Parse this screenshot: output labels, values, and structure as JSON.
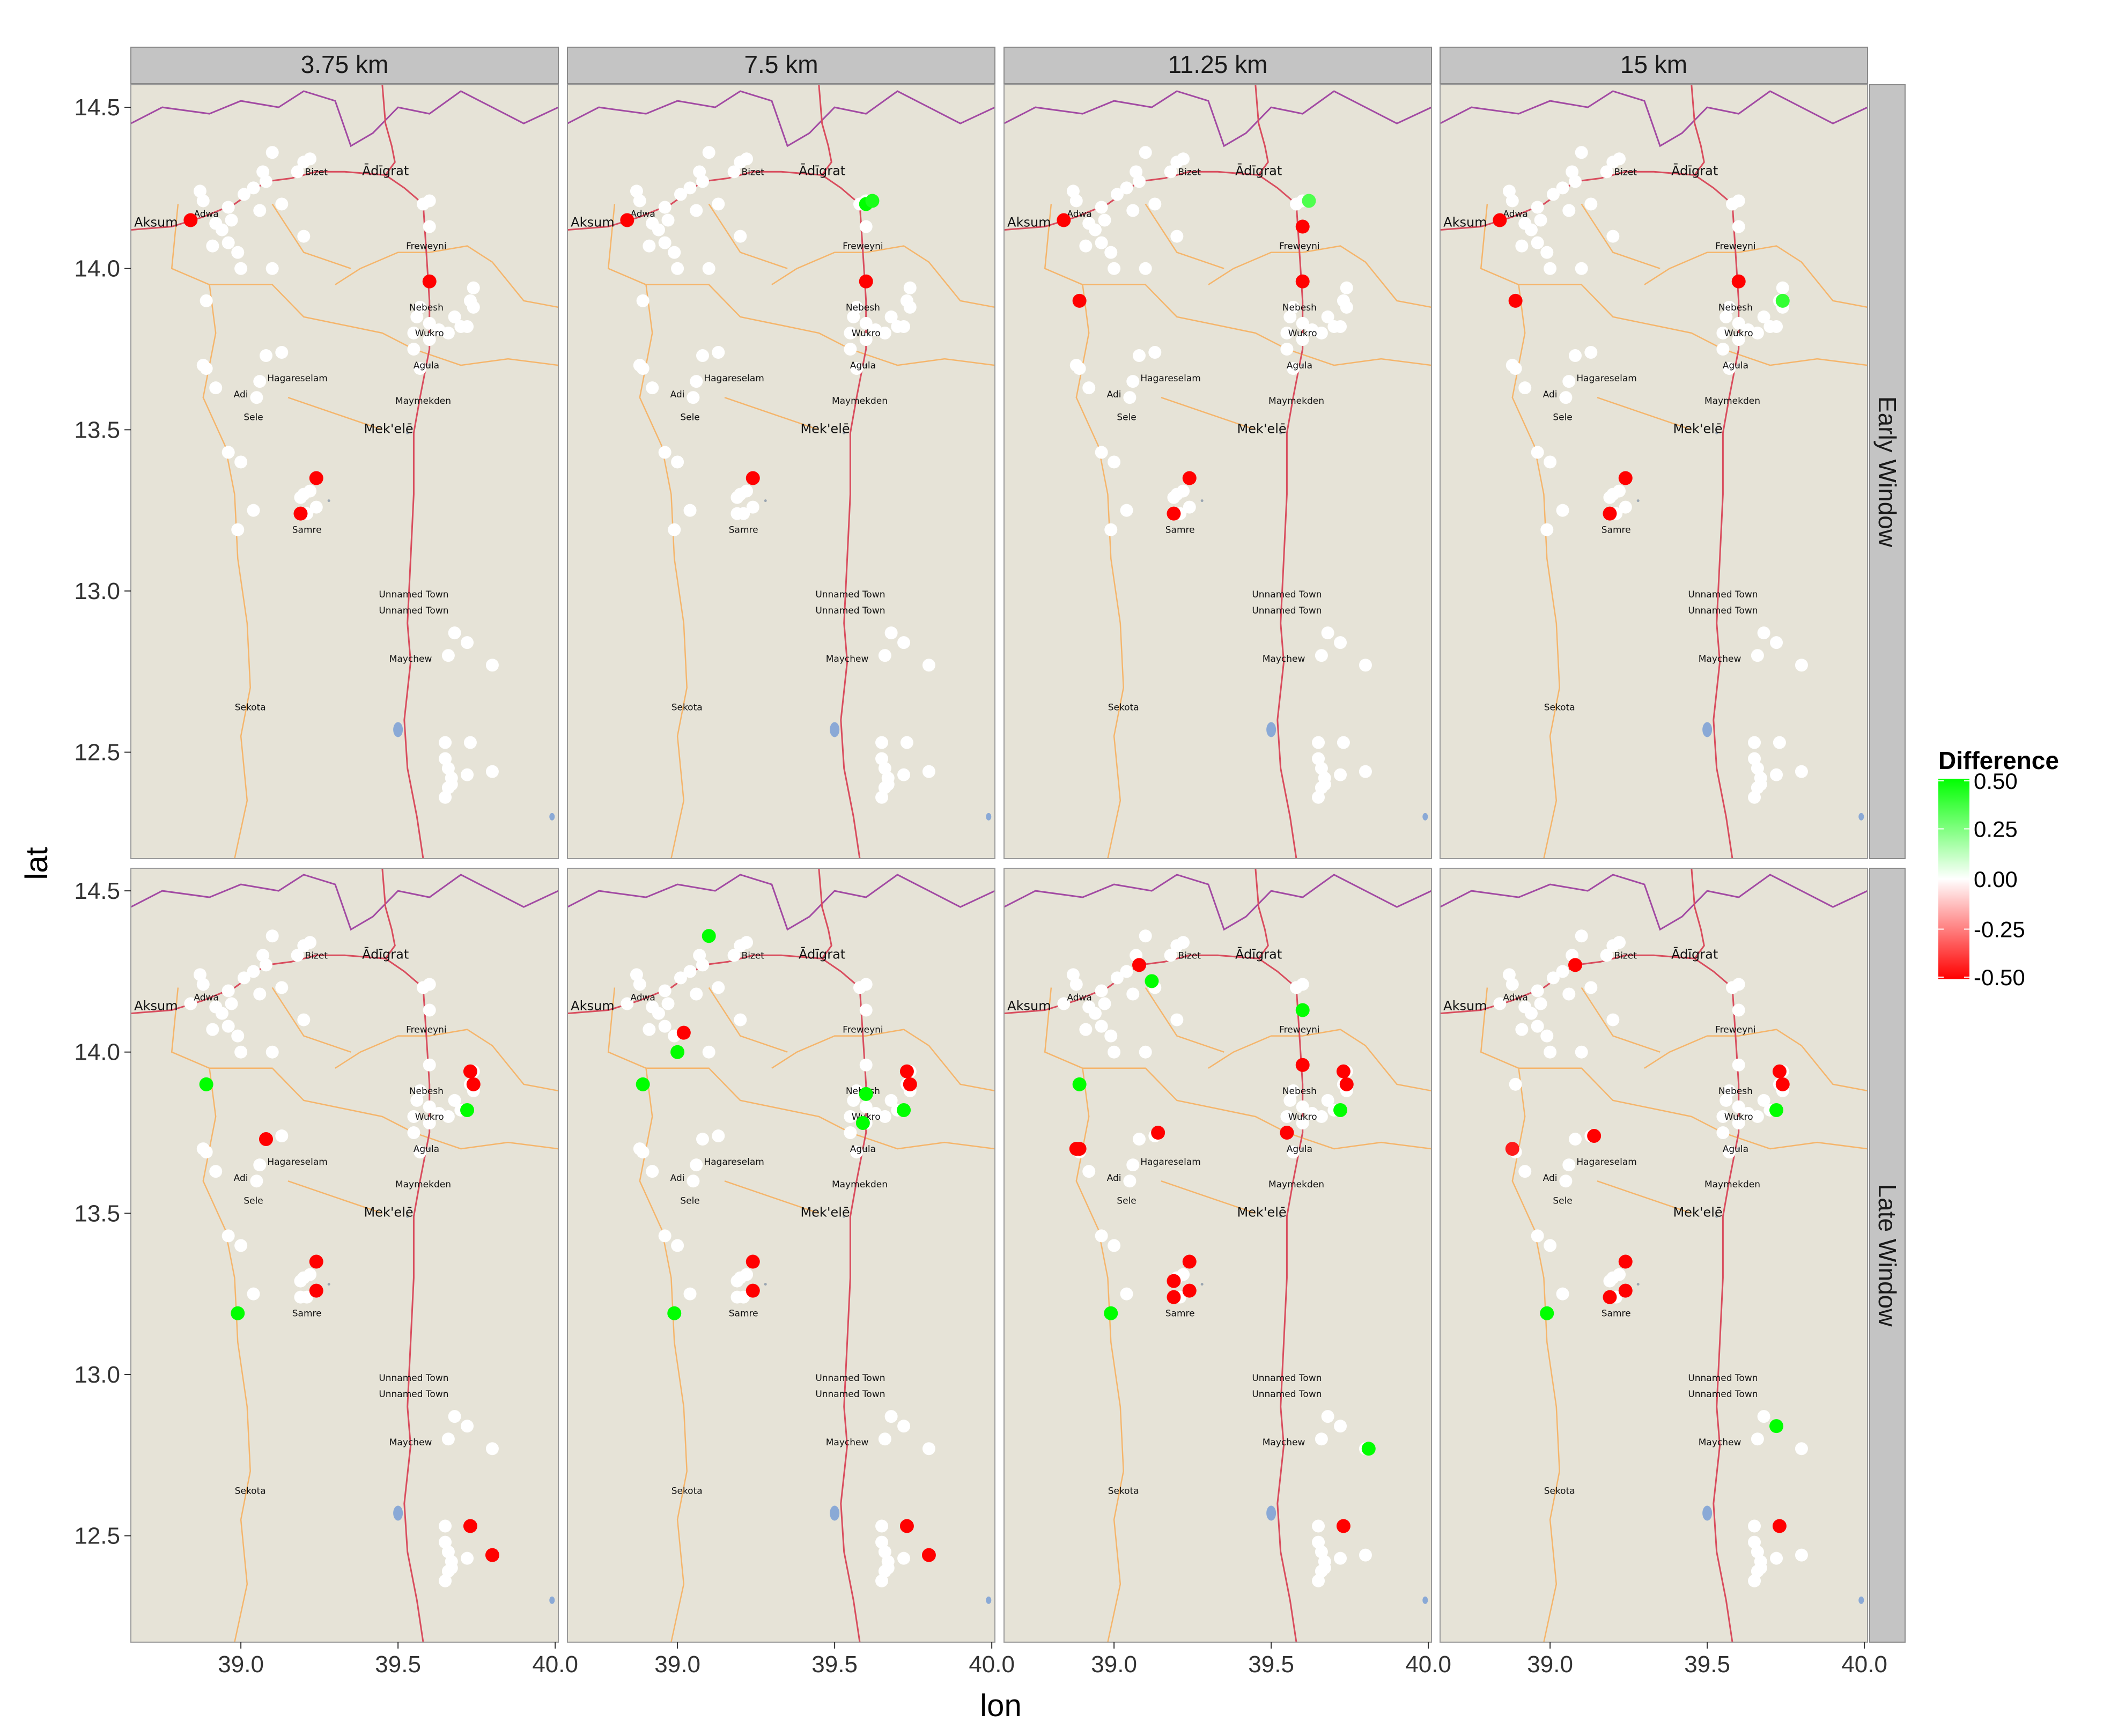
{
  "chart_data": {
    "type": "scatter",
    "subtype": "faceted map",
    "xlabel": "lon",
    "ylabel": "lat",
    "xlim": [
      38.65,
      40.01
    ],
    "ylim": [
      12.17,
      14.57
    ],
    "x_ticks": [
      "39.0",
      "39.5",
      "40.0"
    ],
    "y_ticks": [
      "12.5",
      "13.0",
      "13.5",
      "14.0",
      "14.5"
    ],
    "column_facets": [
      "3.75 km",
      "7.5 km",
      "11.25 km",
      "15 km"
    ],
    "row_facets": [
      "Early Window",
      "Late Window"
    ],
    "legend": {
      "title": "Difference",
      "labels": [
        "0.50",
        "0.25",
        "0.00",
        "-0.25",
        "-0.50"
      ],
      "values": [
        0.5,
        0.25,
        0,
        -0.25,
        -0.5
      ],
      "low_color": "#ff0000",
      "mid_color": "#ffffff",
      "high_color": "#00ff00"
    },
    "map_towns": [
      {
        "name": "Aksum",
        "lon": 38.73,
        "lat": 14.13,
        "size": "big"
      },
      {
        "name": "Adwa",
        "lon": 38.89,
        "lat": 14.16,
        "size": "small"
      },
      {
        "name": "Bizet",
        "lon": 39.24,
        "lat": 14.29,
        "size": "small"
      },
      {
        "name": "Ādīgrat",
        "lon": 39.46,
        "lat": 14.29,
        "size": "big"
      },
      {
        "name": "Freweyni",
        "lon": 39.59,
        "lat": 14.06,
        "size": "small"
      },
      {
        "name": "Nebesh",
        "lon": 39.59,
        "lat": 13.87,
        "size": "small"
      },
      {
        "name": "Wukro",
        "lon": 39.6,
        "lat": 13.79,
        "size": "small"
      },
      {
        "name": "Agula",
        "lon": 39.59,
        "lat": 13.69,
        "size": "small"
      },
      {
        "name": "Hagareselam",
        "lon": 39.18,
        "lat": 13.65,
        "size": "small"
      },
      {
        "name": "Adi",
        "lon": 39.0,
        "lat": 13.6,
        "size": "small"
      },
      {
        "name": "Sele",
        "lon": 39.04,
        "lat": 13.53,
        "size": "small"
      },
      {
        "name": "Maymekden",
        "lon": 39.58,
        "lat": 13.58,
        "size": "small"
      },
      {
        "name": "Mek'elē",
        "lon": 39.47,
        "lat": 13.49,
        "size": "big"
      },
      {
        "name": "Samre",
        "lon": 39.21,
        "lat": 13.18,
        "size": "small"
      },
      {
        "name": "Unnamed Town",
        "lon": 39.55,
        "lat": 12.98,
        "size": "small"
      },
      {
        "name": "Unnamed Town",
        "lon": 39.55,
        "lat": 12.93,
        "size": "small"
      },
      {
        "name": "Maychew",
        "lon": 39.54,
        "lat": 12.78,
        "size": "small"
      },
      {
        "name": "Sekota",
        "lon": 39.03,
        "lat": 12.63,
        "size": "small"
      }
    ],
    "site_locations": [
      [
        38.87,
        14.24
      ],
      [
        38.88,
        14.21
      ],
      [
        38.92,
        14.14
      ],
      [
        38.91,
        14.07
      ],
      [
        38.94,
        14.12
      ],
      [
        38.97,
        14.15
      ],
      [
        39.01,
        14.23
      ],
      [
        38.96,
        14.19
      ],
      [
        38.96,
        14.08
      ],
      [
        38.99,
        14.05
      ],
      [
        39.0,
        14.0
      ],
      [
        39.04,
        14.25
      ],
      [
        39.07,
        14.3
      ],
      [
        39.06,
        14.18
      ],
      [
        39.08,
        14.27
      ],
      [
        39.1,
        14.36
      ],
      [
        39.13,
        14.2
      ],
      [
        39.18,
        14.3
      ],
      [
        39.2,
        14.33
      ],
      [
        39.22,
        14.34
      ],
      [
        39.1,
        14.0
      ],
      [
        39.2,
        14.1
      ],
      [
        38.89,
        13.9
      ],
      [
        38.88,
        13.7
      ],
      [
        38.89,
        13.69
      ],
      [
        38.92,
        13.63
      ],
      [
        38.96,
        13.43
      ],
      [
        39.0,
        13.4
      ],
      [
        38.99,
        13.19
      ],
      [
        39.04,
        13.25
      ],
      [
        39.05,
        13.6
      ],
      [
        39.06,
        13.65
      ],
      [
        39.08,
        13.73
      ],
      [
        39.13,
        13.74
      ],
      [
        39.19,
        13.29
      ],
      [
        39.2,
        13.3
      ],
      [
        39.22,
        13.31
      ],
      [
        39.21,
        13.24
      ],
      [
        39.24,
        13.26
      ],
      [
        39.58,
        14.2
      ],
      [
        39.6,
        14.21
      ],
      [
        39.6,
        14.13
      ],
      [
        39.6,
        13.96
      ],
      [
        39.57,
        13.88
      ],
      [
        39.56,
        13.85
      ],
      [
        39.6,
        13.83
      ],
      [
        39.55,
        13.8
      ],
      [
        39.6,
        13.78
      ],
      [
        39.63,
        13.81
      ],
      [
        39.66,
        13.8
      ],
      [
        39.68,
        13.85
      ],
      [
        39.72,
        13.82
      ],
      [
        39.74,
        13.94
      ],
      [
        39.73,
        13.9
      ],
      [
        39.74,
        13.88
      ],
      [
        39.7,
        13.82
      ],
      [
        39.55,
        13.75
      ],
      [
        39.57,
        13.69
      ],
      [
        39.68,
        12.87
      ],
      [
        39.72,
        12.84
      ],
      [
        39.66,
        12.8
      ],
      [
        39.8,
        12.77
      ],
      [
        39.65,
        12.53
      ],
      [
        39.73,
        12.53
      ],
      [
        39.65,
        12.48
      ],
      [
        39.66,
        12.45
      ],
      [
        39.67,
        12.42
      ],
      [
        39.66,
        12.39
      ],
      [
        39.65,
        12.36
      ],
      [
        39.72,
        12.43
      ],
      [
        39.8,
        12.44
      ],
      [
        39.67,
        12.4
      ],
      [
        39.24,
        13.35
      ],
      [
        39.19,
        13.24
      ],
      [
        38.84,
        14.15
      ]
    ],
    "panels": [
      {
        "column": "3.75 km",
        "row": "Early Window",
        "points": [
          {
            "lon": 38.84,
            "lat": 14.15,
            "value": -0.5
          },
          {
            "lon": 39.6,
            "lat": 13.96,
            "value": -0.5
          },
          {
            "lon": 39.24,
            "lat": 13.35,
            "value": -0.5
          },
          {
            "lon": 39.19,
            "lat": 13.24,
            "value": -0.5
          }
        ]
      },
      {
        "column": "7.5 km",
        "row": "Early Window",
        "points": [
          {
            "lon": 38.84,
            "lat": 14.15,
            "value": -0.5
          },
          {
            "lon": 39.6,
            "lat": 14.2,
            "value": 0.5
          },
          {
            "lon": 39.62,
            "lat": 14.21,
            "value": 0.45
          },
          {
            "lon": 39.6,
            "lat": 13.96,
            "value": -0.5
          },
          {
            "lon": 39.24,
            "lat": 13.35,
            "value": -0.5
          }
        ]
      },
      {
        "column": "11.25 km",
        "row": "Early Window",
        "points": [
          {
            "lon": 38.84,
            "lat": 14.15,
            "value": -0.5
          },
          {
            "lon": 38.89,
            "lat": 13.9,
            "value": -0.5
          },
          {
            "lon": 39.62,
            "lat": 14.21,
            "value": 0.35
          },
          {
            "lon": 39.6,
            "lat": 14.13,
            "value": -0.5
          },
          {
            "lon": 39.6,
            "lat": 13.96,
            "value": -0.5
          },
          {
            "lon": 39.24,
            "lat": 13.35,
            "value": -0.5
          },
          {
            "lon": 39.19,
            "lat": 13.24,
            "value": -0.5
          }
        ]
      },
      {
        "column": "15 km",
        "row": "Early Window",
        "points": [
          {
            "lon": 38.84,
            "lat": 14.15,
            "value": -0.5
          },
          {
            "lon": 38.89,
            "lat": 13.9,
            "value": -0.5
          },
          {
            "lon": 39.6,
            "lat": 13.96,
            "value": -0.5
          },
          {
            "lon": 39.74,
            "lat": 13.9,
            "value": 0.4
          },
          {
            "lon": 39.24,
            "lat": 13.35,
            "value": -0.5
          },
          {
            "lon": 39.19,
            "lat": 13.24,
            "value": -0.5
          }
        ]
      },
      {
        "column": "3.75 km",
        "row": "Late Window",
        "points": [
          {
            "lon": 38.89,
            "lat": 13.9,
            "value": 0.5
          },
          {
            "lon": 39.08,
            "lat": 13.73,
            "value": -0.5
          },
          {
            "lon": 39.73,
            "lat": 13.94,
            "value": -0.5
          },
          {
            "lon": 39.74,
            "lat": 13.9,
            "value": -0.5
          },
          {
            "lon": 39.72,
            "lat": 13.82,
            "value": 0.5
          },
          {
            "lon": 39.24,
            "lat": 13.35,
            "value": -0.5
          },
          {
            "lon": 39.24,
            "lat": 13.26,
            "value": -0.5
          },
          {
            "lon": 38.99,
            "lat": 13.19,
            "value": 0.5
          },
          {
            "lon": 39.73,
            "lat": 12.53,
            "value": -0.5
          },
          {
            "lon": 39.8,
            "lat": 12.44,
            "value": -0.5
          }
        ]
      },
      {
        "column": "7.5 km",
        "row": "Late Window",
        "points": [
          {
            "lon": 39.1,
            "lat": 14.36,
            "value": 0.5
          },
          {
            "lon": 39.02,
            "lat": 14.06,
            "value": -0.5
          },
          {
            "lon": 39.0,
            "lat": 14.0,
            "value": 0.5
          },
          {
            "lon": 38.89,
            "lat": 13.9,
            "value": 0.5
          },
          {
            "lon": 39.73,
            "lat": 13.94,
            "value": -0.5
          },
          {
            "lon": 39.74,
            "lat": 13.9,
            "value": -0.5
          },
          {
            "lon": 39.6,
            "lat": 13.87,
            "value": 0.5
          },
          {
            "lon": 39.72,
            "lat": 13.82,
            "value": 0.5
          },
          {
            "lon": 39.59,
            "lat": 13.78,
            "value": 0.5
          },
          {
            "lon": 39.24,
            "lat": 13.35,
            "value": -0.5
          },
          {
            "lon": 39.24,
            "lat": 13.26,
            "value": -0.5
          },
          {
            "lon": 38.99,
            "lat": 13.19,
            "value": 0.5
          },
          {
            "lon": 39.73,
            "lat": 12.53,
            "value": -0.5
          },
          {
            "lon": 39.8,
            "lat": 12.44,
            "value": -0.5
          }
        ]
      },
      {
        "column": "11.25 km",
        "row": "Late Window",
        "points": [
          {
            "lon": 39.08,
            "lat": 14.27,
            "value": -0.5
          },
          {
            "lon": 39.12,
            "lat": 14.22,
            "value": 0.5
          },
          {
            "lon": 39.6,
            "lat": 14.13,
            "value": 0.5
          },
          {
            "lon": 38.89,
            "lat": 13.9,
            "value": 0.5
          },
          {
            "lon": 39.6,
            "lat": 13.96,
            "value": -0.5
          },
          {
            "lon": 39.73,
            "lat": 13.94,
            "value": -0.5
          },
          {
            "lon": 39.74,
            "lat": 13.9,
            "value": -0.5
          },
          {
            "lon": 39.72,
            "lat": 13.82,
            "value": 0.5
          },
          {
            "lon": 39.14,
            "lat": 13.75,
            "value": -0.5
          },
          {
            "lon": 39.55,
            "lat": 13.75,
            "value": -0.5
          },
          {
            "lon": 38.88,
            "lat": 13.7,
            "value": -0.5
          },
          {
            "lon": 38.89,
            "lat": 13.7,
            "value": -0.5
          },
          {
            "lon": 39.24,
            "lat": 13.35,
            "value": -0.5
          },
          {
            "lon": 39.19,
            "lat": 13.29,
            "value": -0.5
          },
          {
            "lon": 39.24,
            "lat": 13.26,
            "value": -0.5
          },
          {
            "lon": 39.19,
            "lat": 13.24,
            "value": -0.5
          },
          {
            "lon": 38.99,
            "lat": 13.19,
            "value": 0.5
          },
          {
            "lon": 39.81,
            "lat": 12.77,
            "value": 0.5
          },
          {
            "lon": 39.73,
            "lat": 12.53,
            "value": -0.5
          }
        ]
      },
      {
        "column": "15 km",
        "row": "Late Window",
        "points": [
          {
            "lon": 39.08,
            "lat": 14.27,
            "value": -0.5
          },
          {
            "lon": 39.73,
            "lat": 13.94,
            "value": -0.5
          },
          {
            "lon": 39.74,
            "lat": 13.9,
            "value": -0.5
          },
          {
            "lon": 39.72,
            "lat": 13.82,
            "value": 0.5
          },
          {
            "lon": 39.14,
            "lat": 13.74,
            "value": -0.5
          },
          {
            "lon": 38.88,
            "lat": 13.7,
            "value": -0.45
          },
          {
            "lon": 39.24,
            "lat": 13.35,
            "value": -0.5
          },
          {
            "lon": 39.24,
            "lat": 13.26,
            "value": -0.5
          },
          {
            "lon": 39.19,
            "lat": 13.24,
            "value": -0.5
          },
          {
            "lon": 38.99,
            "lat": 13.19,
            "value": 0.5
          },
          {
            "lon": 39.72,
            "lat": 12.84,
            "value": 0.5
          },
          {
            "lon": 39.73,
            "lat": 12.53,
            "value": -0.5
          }
        ]
      }
    ]
  }
}
